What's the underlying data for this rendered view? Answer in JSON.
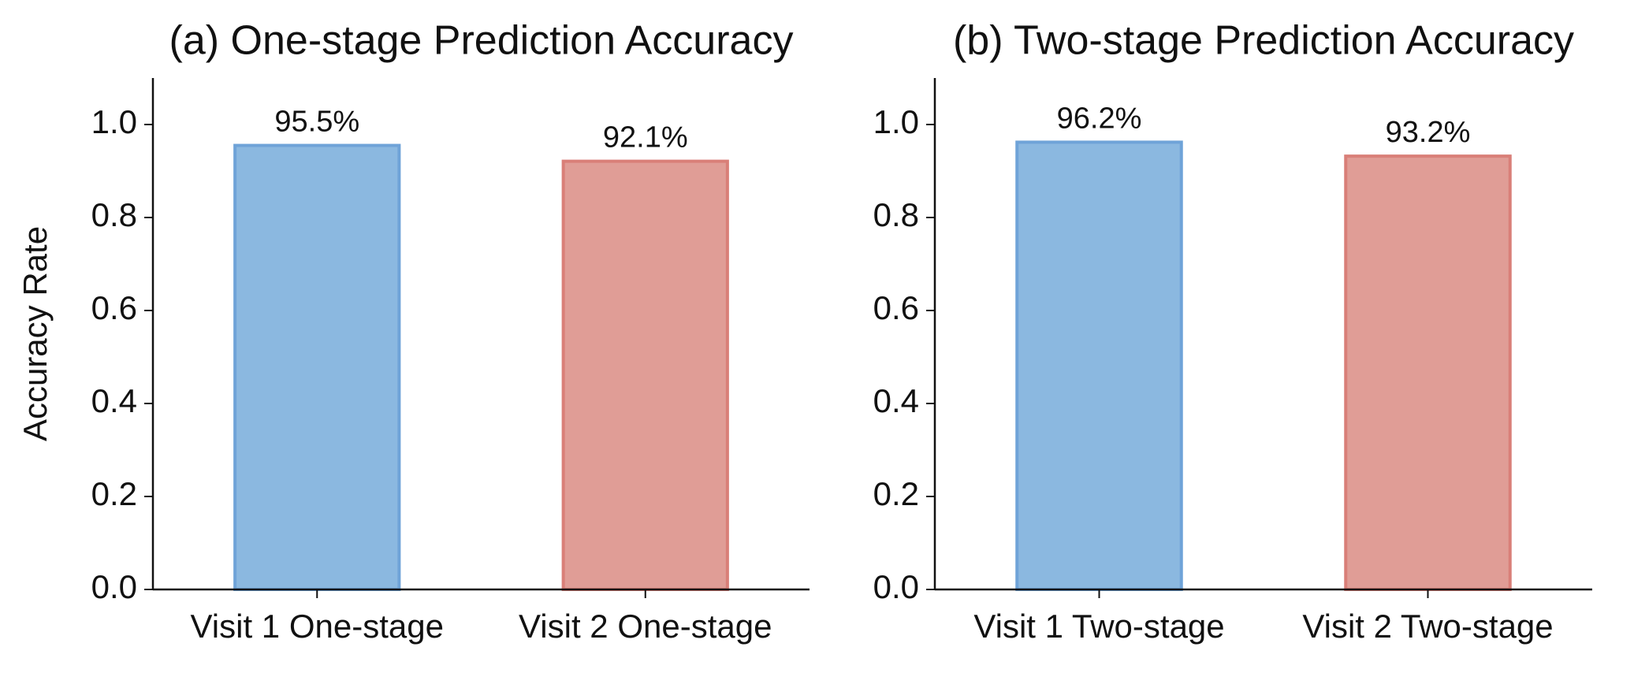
{
  "chart_data": [
    {
      "type": "bar",
      "title": "(a) One-stage Prediction Accuracy",
      "y_label": "Accuracy Rate",
      "categories": [
        "Visit 1 One-stage",
        "Visit 2 One-stage"
      ],
      "values": [
        0.955,
        0.921
      ],
      "value_labels": [
        "95.5%",
        "92.1%"
      ],
      "colors": [
        "#8bb8e0",
        "#e09d96"
      ],
      "edgecolors": [
        "#6fa3d8",
        "#d97f78"
      ],
      "ylim": [
        0,
        1.1
      ],
      "yticks": [
        {
          "value": 0,
          "label": "0.0"
        },
        0.2,
        0.4,
        0.6,
        0.8,
        {
          "value": 1,
          "label": "1.0"
        }
      ]
    },
    {
      "type": "bar",
      "title": "(b) Two-stage Prediction Accuracy",
      "categories": [
        "Visit 1 Two-stage",
        "Visit 2 Two-stage"
      ],
      "values": [
        0.962,
        0.932
      ],
      "value_labels": [
        "96.2%",
        "93.2%"
      ],
      "colors": [
        "#8bb8e0",
        "#e09d96"
      ],
      "edgecolors": [
        "#6fa3d8",
        "#d97f78"
      ],
      "ylim": [
        0,
        1.1
      ],
      "yticks": [
        {
          "value": 0,
          "label": "0.0"
        },
        0.2,
        0.4,
        0.6,
        0.8,
        {
          "value": 1,
          "label": "1.0"
        }
      ]
    }
  ]
}
